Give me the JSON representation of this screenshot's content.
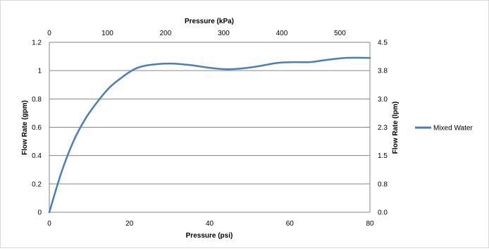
{
  "chart_data": {
    "type": "line",
    "x_bottom": {
      "label": "Pressure (psi)",
      "min": 0,
      "max": 80,
      "ticks": [
        "0",
        "20",
        "40",
        "60",
        "80"
      ]
    },
    "x_top": {
      "label": "Pressure (kPa)",
      "ticks": [
        {
          "value": 0,
          "text": "0"
        },
        {
          "value": 100,
          "text": "100"
        },
        {
          "value": 200,
          "text": "200"
        },
        {
          "value": 300,
          "text": "300"
        },
        {
          "value": 400,
          "text": "400"
        },
        {
          "value": 500,
          "text": "500"
        }
      ]
    },
    "y_left": {
      "label": "Flow Rate (gpm)",
      "min": 0,
      "max": 1.2,
      "ticks": [
        "0",
        "0.2",
        "0.4",
        "0.6",
        "0.8",
        "1",
        "1.2"
      ]
    },
    "y_right": {
      "label": "Flow Rate (lpm)",
      "ticks": [
        "0.0",
        "0.8",
        "1.5",
        "2.3",
        "3.0",
        "3.8",
        "4.5"
      ]
    },
    "grid": "horizontal",
    "legend_position": "right",
    "series": [
      {
        "name": "Mixed Water",
        "color": "#4a7ebb",
        "points": [
          [
            0,
            0
          ],
          [
            3,
            0.28
          ],
          [
            6,
            0.5
          ],
          [
            9,
            0.66
          ],
          [
            12,
            0.78
          ],
          [
            15,
            0.88
          ],
          [
            18,
            0.95
          ],
          [
            20,
            0.99
          ],
          [
            22,
            1.02
          ],
          [
            25,
            1.04
          ],
          [
            30,
            1.05
          ],
          [
            35,
            1.04
          ],
          [
            40,
            1.02
          ],
          [
            44,
            1.01
          ],
          [
            48,
            1.015
          ],
          [
            52,
            1.03
          ],
          [
            57,
            1.055
          ],
          [
            61,
            1.06
          ],
          [
            65,
            1.06
          ],
          [
            69,
            1.075
          ],
          [
            74,
            1.09
          ],
          [
            80,
            1.09
          ]
        ]
      }
    ]
  }
}
